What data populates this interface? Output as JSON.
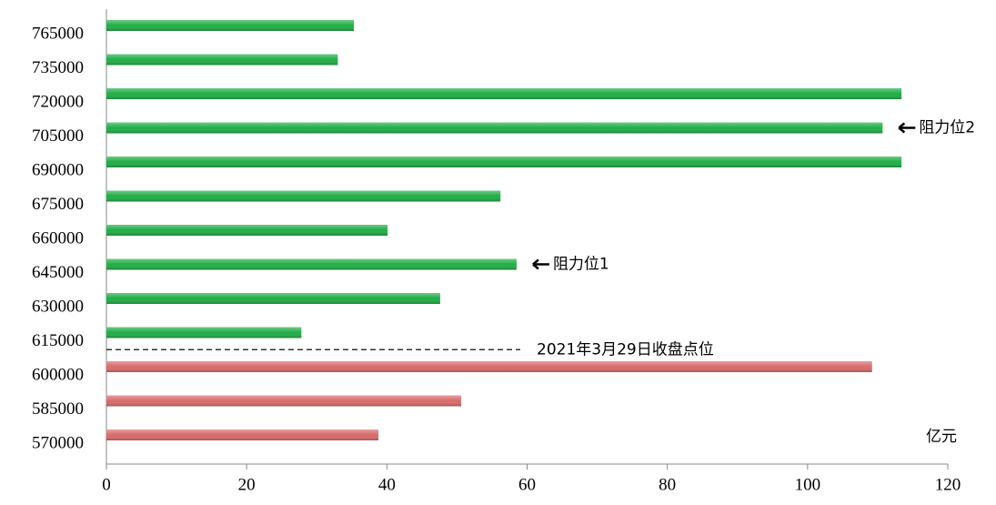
{
  "chart_data": {
    "type": "bar",
    "orientation": "horizontal",
    "categories": [
      "765000",
      "735000",
      "720000",
      "705000",
      "690000",
      "675000",
      "660000",
      "645000",
      "630000",
      "615000",
      "600000",
      "585000",
      "570000"
    ],
    "values": [
      35.3,
      33,
      113.4,
      110.7,
      113.4,
      56.2,
      40.1,
      58.5,
      47.6,
      27.8,
      109.2,
      50.6,
      38.8
    ],
    "colors": [
      "#1fae45",
      "#1fae45",
      "#1fae45",
      "#1fae45",
      "#1fae45",
      "#1fae45",
      "#1fae45",
      "#1fae45",
      "#1fae45",
      "#1fae45",
      "#d96b6b",
      "#d96b6b",
      "#d96b6b"
    ],
    "xlim": [
      0,
      120
    ],
    "xticks": [
      0,
      20,
      40,
      60,
      80,
      100,
      120
    ],
    "grid": false,
    "unit": "亿元",
    "annotations": [
      {
        "text": "阻力位2",
        "at": "705000"
      },
      {
        "text": "阻力位1",
        "at": "645000"
      }
    ],
    "separator": {
      "text": "2021年3月29日收盘点位",
      "between": [
        "615000",
        "600000"
      ]
    }
  }
}
